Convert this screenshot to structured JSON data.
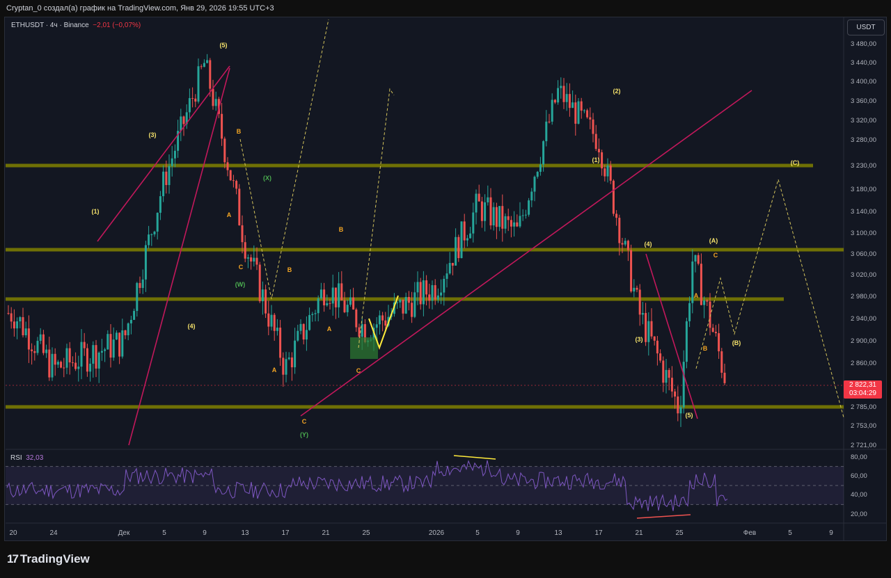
{
  "header": {
    "caption": "Cryptan_0 создал(а) график на TradingView.com, Янв 29, 2026 19:55 UTC+3"
  },
  "symbol": {
    "name": "ETHUSDT · 4ч · Binance",
    "change": "−2,01 (−0,07%)"
  },
  "currency_button": "USDT",
  "last_price": {
    "value": "2 822,31",
    "countdown": "03:04:29"
  },
  "rsi": {
    "label": "RSI",
    "value": "32,03"
  },
  "footer": {
    "brand": "TradingView"
  },
  "colors": {
    "up": "#26a69a",
    "down": "#ef5350",
    "level": "#808000",
    "trend": "#c2185b",
    "rsi": "#7e57c2",
    "wave": "#ffeb3b",
    "projection": "#d4c45c"
  },
  "chart_data": {
    "type": "candlestick",
    "instrument": "ETHUSDT",
    "timeframe": "4ч",
    "exchange": "Binance",
    "price_axis": [
      "3 480,00",
      "3 440,00",
      "3 400,00",
      "3 360,00",
      "3 320,00",
      "3 280,00",
      "3 230,00",
      "3 180,00",
      "3 140,00",
      "3 100,00",
      "3 060,00",
      "3 020,00",
      "2 980,00",
      "2 940,00",
      "2 900,00",
      "2 860,00",
      "2 785,00",
      "2 753,00",
      "2 721,00"
    ],
    "time_axis": [
      "20",
      "24",
      "Дек",
      "5",
      "9",
      "13",
      "17",
      "21",
      "25",
      "2026",
      "5",
      "9",
      "13",
      "17",
      "21",
      "25",
      "Фев",
      "5",
      "9"
    ],
    "rsi_axis": [
      "80,00",
      "60,00",
      "40,00",
      "20,00"
    ],
    "rsi_levels": [
      70,
      50,
      30
    ],
    "horizontal_levels": [
      3230,
      3068,
      2975,
      2785
    ],
    "price_path": [
      [
        "20",
        2950
      ],
      [
        "24",
        2850
      ],
      [
        "Дек",
        2900
      ],
      [
        "5",
        3200
      ],
      [
        "9",
        3440
      ],
      [
        "13",
        3080
      ],
      [
        "17",
        2850
      ],
      [
        "21",
        3000
      ],
      [
        "25",
        2920
      ],
      [
        "2026",
        3000
      ],
      [
        "5",
        3150
      ],
      [
        "9",
        3100
      ],
      [
        "13",
        3380
      ],
      [
        "17",
        3280
      ],
      [
        "21",
        2950
      ],
      [
        "25",
        2780
      ],
      [
        "25",
        3050
      ],
      [
        "25",
        2822
      ]
    ],
    "wave_labels": [
      "(1)",
      "(3)",
      "(4)",
      "(5)",
      "B",
      "A",
      "C",
      "(W)",
      "(X)",
      "(Y)",
      "B",
      "A",
      "C",
      "A",
      "B",
      "C",
      "(1)",
      "(2)",
      "(4)",
      "(3)",
      "(5)",
      "A",
      "B",
      "C",
      "(A)",
      "(B)",
      "(C)"
    ]
  }
}
